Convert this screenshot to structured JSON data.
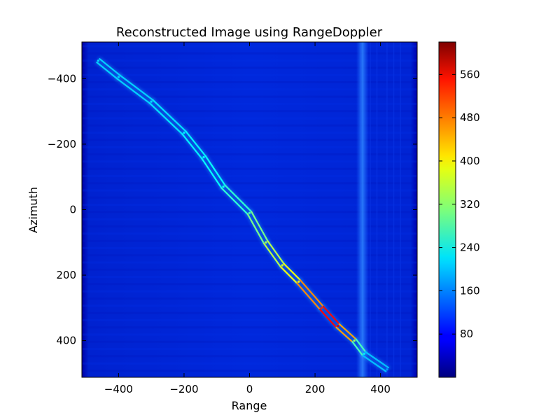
{
  "chart_data": {
    "type": "heatmap",
    "title": "Reconstructed Image using RangeDoppler",
    "xlabel": "Range",
    "ylabel": "Azimuth",
    "xlim": [
      -512,
      512
    ],
    "ylim": [
      512,
      -512
    ],
    "y_inverted": true,
    "xticks": [
      -400,
      -200,
      0,
      200,
      400
    ],
    "yticks": [
      -400,
      -200,
      0,
      200,
      400
    ],
    "xtick_labels": [
      "−400",
      "−200",
      "0",
      "200",
      "400"
    ],
    "ytick_labels": [
      "−400",
      "−200",
      "0",
      "200",
      "400"
    ],
    "grid": false,
    "colormap": "jet",
    "background_value": 60,
    "colorbar": {
      "min": 0,
      "max": 620,
      "ticks": [
        80,
        160,
        240,
        320,
        400,
        480,
        560
      ],
      "tick_labels": [
        "80",
        "160",
        "240",
        "320",
        "400",
        "480",
        "560"
      ]
    },
    "vertical_band": {
      "range": 345,
      "value": 110
    },
    "target_track": [
      {
        "range": -462,
        "azimuth": -455,
        "value": 210
      },
      {
        "range": -400,
        "azimuth": -405,
        "value": 200
      },
      {
        "range": -300,
        "azimuth": -330,
        "value": 210
      },
      {
        "range": -200,
        "azimuth": -235,
        "value": 220
      },
      {
        "range": -140,
        "azimuth": -160,
        "value": 230
      },
      {
        "range": -80,
        "azimuth": -70,
        "value": 240
      },
      {
        "range": 0,
        "azimuth": 10,
        "value": 280
      },
      {
        "range": 50,
        "azimuth": 100,
        "value": 330
      },
      {
        "range": 100,
        "azimuth": 170,
        "value": 360
      },
      {
        "range": 150,
        "azimuth": 220,
        "value": 400
      },
      {
        "range": 220,
        "azimuth": 300,
        "value": 520
      },
      {
        "range": 270,
        "azimuth": 355,
        "value": 560
      },
      {
        "range": 320,
        "azimuth": 400,
        "value": 330
      },
      {
        "range": 350,
        "azimuth": 440,
        "value": 220
      },
      {
        "range": 420,
        "azimuth": 488,
        "value": 170
      }
    ]
  }
}
